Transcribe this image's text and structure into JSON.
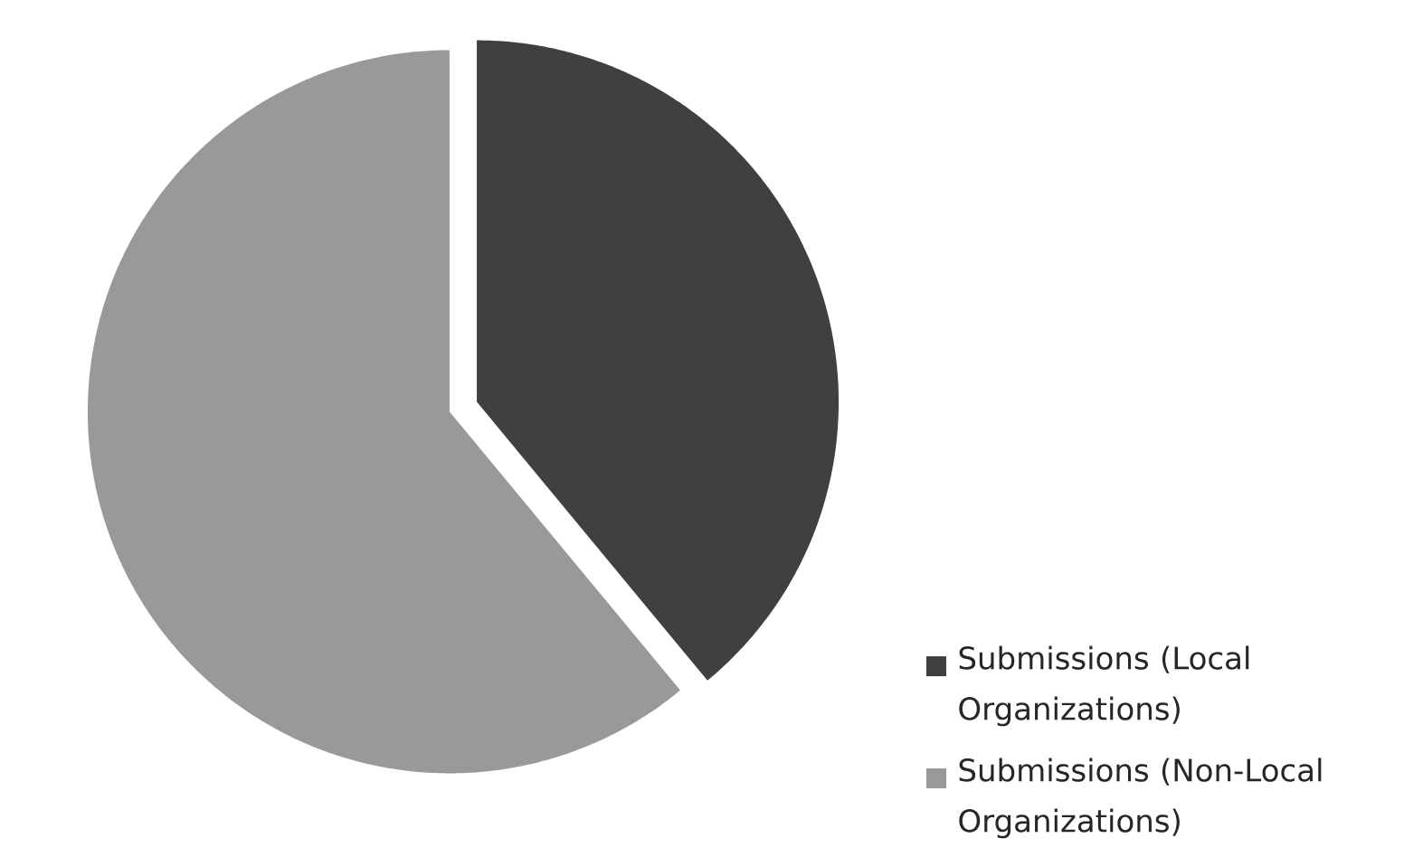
{
  "chart_data": {
    "type": "pie",
    "categories": [
      "Submissions (Local Organizations)",
      "Submissions (Non-Local Organizations)"
    ],
    "values": [
      39,
      61
    ],
    "colors": [
      "#404040",
      "#999999"
    ],
    "legend": "bottom right"
  }
}
